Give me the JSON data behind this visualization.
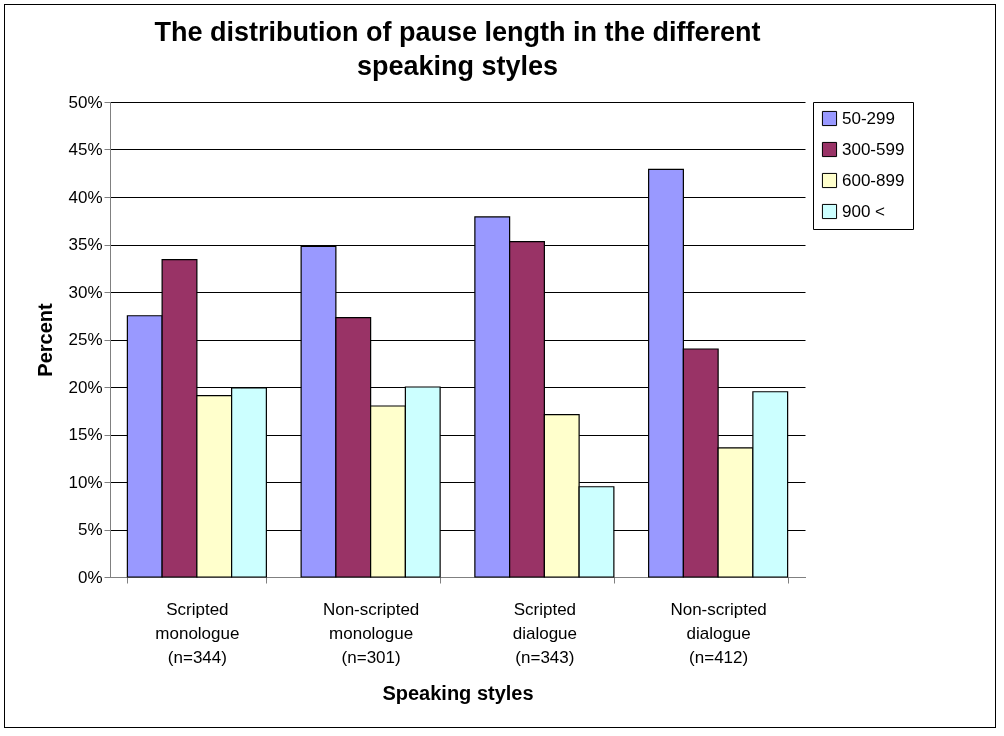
{
  "chart_data": {
    "type": "bar",
    "title": "The distribution of pause length in the different\nspeaking styles",
    "xlabel": "Speaking styles",
    "ylabel": "Percent",
    "categories": [
      "Scripted\nmonologue\n(n=344)",
      "Non-scripted\nmonologue\n(n=301)",
      "Scripted\ndialogue\n(n=343)",
      "Non-scripted\ndialogue\n(n=412)"
    ],
    "series": [
      {
        "name": "50-299",
        "color": "#9999ff",
        "values": [
          27.5,
          34.8,
          37.9,
          42.9
        ]
      },
      {
        "name": "300-599",
        "color": "#993366",
        "values": [
          33.4,
          27.3,
          35.3,
          24.0
        ]
      },
      {
        "name": "600-899",
        "color": "#ffffcc",
        "values": [
          19.1,
          18.0,
          17.1,
          13.6
        ]
      },
      {
        "name": "900 <",
        "color": "#ccffff",
        "values": [
          19.9,
          20.0,
          9.5,
          19.5
        ]
      }
    ],
    "ylim": [
      0,
      50
    ],
    "yticks": [
      {
        "value": 0,
        "label": "0%"
      },
      {
        "value": 5,
        "label": "5%"
      },
      {
        "value": 10,
        "label": "10%"
      },
      {
        "value": 15,
        "label": "15%"
      },
      {
        "value": 20,
        "label": "20%"
      },
      {
        "value": 25,
        "label": "25%"
      },
      {
        "value": 30,
        "label": "30%"
      },
      {
        "value": 35,
        "label": "35%"
      },
      {
        "value": 40,
        "label": "40%"
      },
      {
        "value": 45,
        "label": "45%"
      },
      {
        "value": 50,
        "label": "50%"
      }
    ],
    "grid": "y",
    "legend": "right"
  }
}
